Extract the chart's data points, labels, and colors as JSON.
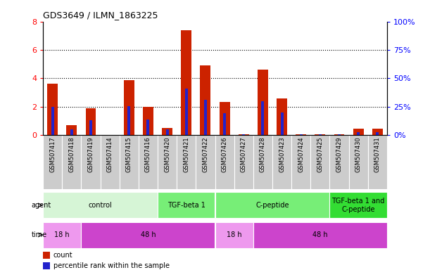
{
  "title": "GDS3649 / ILMN_1863225",
  "samples": [
    "GSM507417",
    "GSM507418",
    "GSM507419",
    "GSM507414",
    "GSM507415",
    "GSM507416",
    "GSM507420",
    "GSM507421",
    "GSM507422",
    "GSM507426",
    "GSM507427",
    "GSM507428",
    "GSM507423",
    "GSM507424",
    "GSM507425",
    "GSM507429",
    "GSM507430",
    "GSM507431"
  ],
  "count_values": [
    3.6,
    0.7,
    1.9,
    0.0,
    3.85,
    2.0,
    0.5,
    7.4,
    4.9,
    2.35,
    0.05,
    4.6,
    2.6,
    0.05,
    0.05,
    0.05,
    0.45,
    0.45
  ],
  "percentile_values": [
    25.0,
    5.0,
    13.0,
    0.0,
    25.5,
    13.5,
    5.0,
    41.0,
    31.0,
    19.0,
    0.5,
    30.0,
    20.0,
    0.5,
    0.5,
    0.5,
    2.5,
    2.5
  ],
  "ylim_left": [
    0,
    8
  ],
  "ylim_right": [
    0,
    100
  ],
  "yticks_left": [
    0,
    2,
    4,
    6,
    8
  ],
  "yticks_right": [
    0,
    25,
    50,
    75,
    100
  ],
  "ytick_labels_right": [
    "0%",
    "25%",
    "50%",
    "75%",
    "100%"
  ],
  "bar_color_count": "#cc2200",
  "bar_color_percentile": "#2222cc",
  "agent_groups": [
    {
      "label": "control",
      "start": 0,
      "end": 6,
      "color": "#d6f5d6"
    },
    {
      "label": "TGF-beta 1",
      "start": 6,
      "end": 9,
      "color": "#77ee77"
    },
    {
      "label": "C-peptide",
      "start": 9,
      "end": 15,
      "color": "#77ee77"
    },
    {
      "label": "TGF-beta 1 and\nC-peptide",
      "start": 15,
      "end": 18,
      "color": "#33dd33"
    }
  ],
  "time_groups": [
    {
      "label": "18 h",
      "start": 0,
      "end": 2,
      "color": "#ee99ee"
    },
    {
      "label": "48 h",
      "start": 2,
      "end": 9,
      "color": "#cc44cc"
    },
    {
      "label": "18 h",
      "start": 9,
      "end": 11,
      "color": "#ee99ee"
    },
    {
      "label": "48 h",
      "start": 11,
      "end": 18,
      "color": "#cc44cc"
    }
  ],
  "tick_bg_color": "#cccccc",
  "legend_count_color": "#cc2200",
  "legend_percentile_color": "#2222cc",
  "bar_width": 0.55,
  "pct_bar_width": 0.15
}
